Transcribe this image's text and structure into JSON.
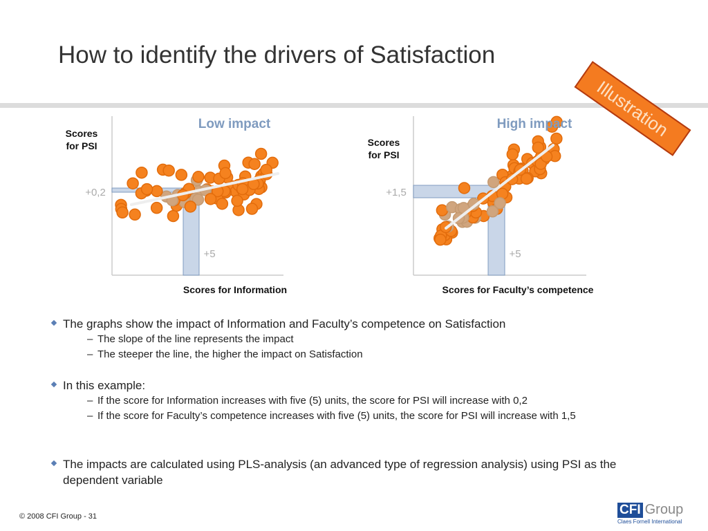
{
  "header": {
    "title": "How to identify the drivers of Satisfaction",
    "stamp": "Illustration"
  },
  "charts": [
    {
      "title": "Low impact",
      "y_label": [
        "Scores",
        "for PSI"
      ],
      "x_label": "Scores for Information",
      "y_annotation": "+0,2",
      "x_annotation": "+5"
    },
    {
      "title": "High impact",
      "y_label": [
        "Scores",
        "for PSI"
      ],
      "x_label": "Scores for Faculty’s competence",
      "y_annotation": "+1,5",
      "x_annotation": "+5"
    }
  ],
  "bullets": [
    {
      "text": "The graphs show the impact of Information and Faculty’s competence on Satisfaction",
      "sub": [
        "The slope of the line represents the impact",
        "The steeper the line, the higher the impact on Satisfaction"
      ]
    },
    {
      "text": "In this example:",
      "sub": [
        "If the score for Information increases with five (5) units, the score for PSI will increase with 0,2",
        "If the score for Faculty’s competence increases with five (5) units, the score for PSI will increase with 1,5"
      ]
    },
    {
      "text": "The impacts are calculated using PLS-analysis (an advanced type of regression analysis) using PSI as the dependent variable",
      "sub": []
    }
  ],
  "footer": {
    "copyright": "© 2008 CFI Group - 31",
    "logo_mark": "CFI",
    "logo_word": "Group",
    "logo_tagline": "Claes Fornell International"
  }
}
